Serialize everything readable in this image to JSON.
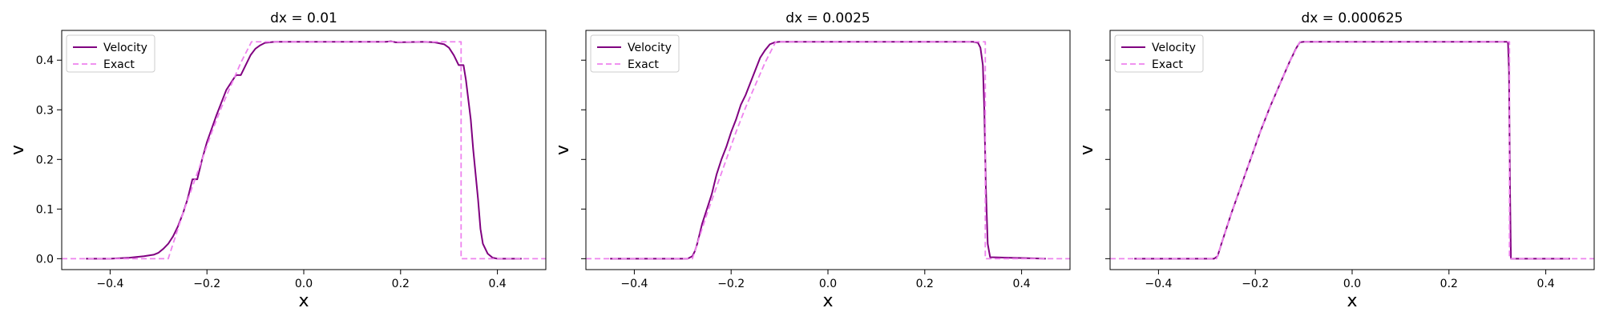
{
  "colors": {
    "velocity": "#800080",
    "exact": "#ee82ee"
  },
  "chart_data": [
    {
      "type": "line",
      "title": "dx = 0.01",
      "xlabel": "x",
      "ylabel": "v",
      "xlim": [
        -0.5,
        0.5
      ],
      "ylim": [
        -0.022,
        0.46
      ],
      "xticks": [
        -0.4,
        -0.2,
        0.0,
        0.2,
        0.4
      ],
      "xtick_labels": [
        "−0.4",
        "−0.2",
        "0.0",
        "0.2",
        "0.4"
      ],
      "yticks": [
        0.0,
        0.1,
        0.2,
        0.3,
        0.4
      ],
      "ytick_labels": [
        "0.0",
        "0.1",
        "0.2",
        "0.3",
        "0.4"
      ],
      "show_ytick_labels": true,
      "grid": false,
      "legend": "upper-left",
      "series": [
        {
          "name": "Velocity",
          "style": "solid",
          "x": [
            -0.45,
            -0.4,
            -0.36,
            -0.33,
            -0.31,
            -0.3,
            -0.29,
            -0.28,
            -0.27,
            -0.26,
            -0.25,
            -0.24,
            -0.23,
            -0.22,
            -0.21,
            -0.2,
            -0.18,
            -0.16,
            -0.14,
            -0.13,
            -0.12,
            -0.11,
            -0.1,
            -0.09,
            -0.08,
            -0.06,
            -0.04,
            0.0,
            0.1,
            0.17,
            0.18,
            0.19,
            0.25,
            0.27,
            0.29,
            0.3,
            0.31,
            0.32,
            0.325,
            0.33,
            0.335,
            0.34,
            0.345,
            0.35,
            0.36,
            0.365,
            0.37,
            0.38,
            0.39,
            0.4,
            0.45
          ],
          "y": [
            0.0,
            0.0,
            0.002,
            0.005,
            0.008,
            0.012,
            0.02,
            0.03,
            0.045,
            0.065,
            0.09,
            0.12,
            0.16,
            0.16,
            0.2,
            0.235,
            0.29,
            0.34,
            0.37,
            0.37,
            0.39,
            0.41,
            0.423,
            0.43,
            0.435,
            0.437,
            0.437,
            0.437,
            0.437,
            0.437,
            0.438,
            0.436,
            0.437,
            0.436,
            0.432,
            0.425,
            0.41,
            0.39,
            0.39,
            0.39,
            0.36,
            0.32,
            0.28,
            0.22,
            0.12,
            0.06,
            0.03,
            0.01,
            0.002,
            0.0,
            0.0
          ]
        },
        {
          "name": "Exact",
          "style": "dashed",
          "x": [
            -0.5,
            -0.28,
            -0.27,
            -0.25,
            -0.23,
            -0.21,
            -0.19,
            -0.17,
            -0.15,
            -0.13,
            -0.11,
            -0.108,
            0.325,
            0.325,
            0.5
          ],
          "y": [
            0.0,
            0.0,
            0.03,
            0.09,
            0.145,
            0.2,
            0.255,
            0.305,
            0.35,
            0.395,
            0.433,
            0.437,
            0.437,
            0.0,
            0.0
          ]
        }
      ]
    },
    {
      "type": "line",
      "title": "dx = 0.0025",
      "xlabel": "x",
      "ylabel": "v",
      "xlim": [
        -0.5,
        0.5
      ],
      "ylim": [
        -0.022,
        0.46
      ],
      "xticks": [
        -0.4,
        -0.2,
        0.0,
        0.2,
        0.4
      ],
      "xtick_labels": [
        "−0.4",
        "−0.2",
        "0.0",
        "0.2",
        "0.4"
      ],
      "yticks": [
        0.0,
        0.1,
        0.2,
        0.3,
        0.4
      ],
      "ytick_labels": [
        "",
        "",
        "",
        "",
        ""
      ],
      "show_ytick_labels": false,
      "grid": false,
      "legend": "upper-left",
      "series": [
        {
          "name": "Velocity",
          "style": "solid",
          "x": [
            -0.45,
            -0.29,
            -0.28,
            -0.275,
            -0.27,
            -0.26,
            -0.25,
            -0.24,
            -0.23,
            -0.22,
            -0.21,
            -0.2,
            -0.19,
            -0.18,
            -0.17,
            -0.16,
            -0.15,
            -0.14,
            -0.13,
            -0.12,
            -0.11,
            -0.1,
            -0.09,
            -0.08,
            0.0,
            0.3,
            0.31,
            0.315,
            0.32,
            0.323,
            0.326,
            0.33,
            0.335,
            0.45
          ],
          "y": [
            0.0,
            0.0,
            0.005,
            0.015,
            0.03,
            0.07,
            0.1,
            0.13,
            0.17,
            0.2,
            0.225,
            0.255,
            0.28,
            0.31,
            0.33,
            0.355,
            0.38,
            0.405,
            0.42,
            0.432,
            0.436,
            0.437,
            0.437,
            0.437,
            0.437,
            0.437,
            0.435,
            0.425,
            0.39,
            0.3,
            0.15,
            0.03,
            0.003,
            0.0
          ]
        },
        {
          "name": "Exact",
          "style": "dashed",
          "x": [
            -0.5,
            -0.28,
            -0.27,
            -0.25,
            -0.23,
            -0.21,
            -0.19,
            -0.17,
            -0.15,
            -0.13,
            -0.11,
            -0.108,
            0.325,
            0.325,
            0.5
          ],
          "y": [
            0.0,
            0.0,
            0.03,
            0.09,
            0.145,
            0.2,
            0.255,
            0.305,
            0.35,
            0.395,
            0.433,
            0.437,
            0.437,
            0.0,
            0.0
          ]
        }
      ]
    },
    {
      "type": "line",
      "title": "dx = 0.000625",
      "xlabel": "x",
      "ylabel": "v",
      "xlim": [
        -0.5,
        0.5
      ],
      "ylim": [
        -0.022,
        0.46
      ],
      "xticks": [
        -0.4,
        -0.2,
        0.0,
        0.2,
        0.4
      ],
      "xtick_labels": [
        "−0.4",
        "−0.2",
        "0.0",
        "0.2",
        "0.4"
      ],
      "yticks": [
        0.0,
        0.1,
        0.2,
        0.3,
        0.4
      ],
      "ytick_labels": [
        "",
        "",
        "",
        "",
        ""
      ],
      "show_ytick_labels": false,
      "grid": false,
      "legend": "upper-left",
      "series": [
        {
          "name": "Velocity",
          "style": "solid",
          "x": [
            -0.45,
            -0.285,
            -0.278,
            -0.27,
            -0.25,
            -0.23,
            -0.21,
            -0.19,
            -0.17,
            -0.15,
            -0.13,
            -0.115,
            -0.108,
            -0.1,
            0.0,
            0.32,
            0.322,
            0.324,
            0.326,
            0.328,
            0.45
          ],
          "y": [
            0.0,
            0.0,
            0.005,
            0.03,
            0.09,
            0.145,
            0.2,
            0.255,
            0.305,
            0.35,
            0.395,
            0.425,
            0.436,
            0.437,
            0.437,
            0.437,
            0.435,
            0.38,
            0.15,
            0.0,
            0.0
          ]
        },
        {
          "name": "Exact",
          "style": "dashed",
          "x": [
            -0.5,
            -0.28,
            -0.27,
            -0.25,
            -0.23,
            -0.21,
            -0.19,
            -0.17,
            -0.15,
            -0.13,
            -0.11,
            -0.108,
            0.325,
            0.325,
            0.5
          ],
          "y": [
            0.0,
            0.0,
            0.03,
            0.09,
            0.145,
            0.2,
            0.255,
            0.305,
            0.35,
            0.395,
            0.433,
            0.437,
            0.437,
            0.0,
            0.0
          ]
        }
      ]
    }
  ]
}
